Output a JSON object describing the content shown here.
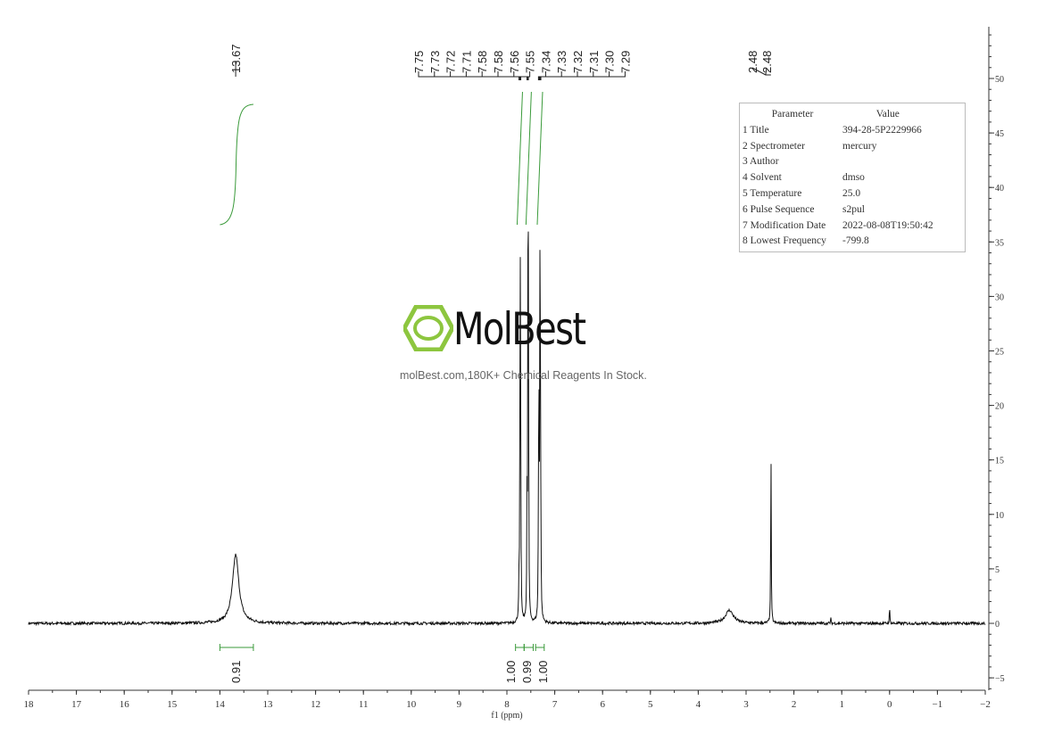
{
  "chart_data": {
    "type": "line",
    "xlabel": "f1 (ppm)",
    "xlim": [
      18,
      -2
    ],
    "ylim": [
      -7,
      55
    ],
    "x_ticks": [
      18,
      17,
      16,
      15,
      14,
      13,
      12,
      11,
      10,
      9,
      8,
      7,
      6,
      5,
      4,
      3,
      2,
      1,
      0,
      -1,
      -2
    ],
    "y_ticks": [
      -5,
      0,
      5,
      10,
      15,
      20,
      25,
      30,
      35,
      40,
      45,
      50
    ],
    "grid": false,
    "series": [
      {
        "peaks_ppm_height": [
          [
            13.67,
            6.3
          ],
          [
            7.75,
            3
          ],
          [
            7.73,
            10
          ],
          [
            7.72,
            28
          ],
          [
            7.71,
            10
          ],
          [
            7.58,
            10
          ],
          [
            7.56,
            29
          ],
          [
            7.55,
            28
          ],
          [
            7.34,
            10
          ],
          [
            7.33,
            17
          ],
          [
            7.31,
            27.5
          ],
          [
            7.3,
            17
          ],
          [
            7.29,
            5
          ],
          [
            3.35,
            1.2
          ],
          [
            2.48,
            17
          ],
          [
            1.23,
            0.5
          ],
          [
            0.0,
            1.6
          ]
        ]
      }
    ],
    "peak_labels": [
      "13.67",
      "7.75",
      "7.73",
      "7.72",
      "7.71",
      "7.58",
      "7.58",
      "7.56",
      "7.55",
      "7.34",
      "7.33",
      "7.32",
      "7.31",
      "7.30",
      "7.29",
      "2.48",
      "2.48"
    ],
    "integrals": [
      {
        "from": 14.0,
        "to": 13.3,
        "value": "0.91"
      },
      {
        "from": 7.82,
        "to": 7.64,
        "value": "1.00"
      },
      {
        "from": 7.64,
        "to": 7.45,
        "value": "0.99"
      },
      {
        "from": 7.4,
        "to": 7.22,
        "value": "1.00"
      }
    ],
    "colors": {
      "spectrum": "#111111",
      "integral": "#3a9a3a",
      "logo": "#8dc63f"
    }
  },
  "parameters": {
    "header": [
      "Parameter",
      "Value"
    ],
    "rows": [
      [
        "1 Title",
        "394-28-5P2229966"
      ],
      [
        "2 Spectrometer",
        "mercury"
      ],
      [
        "3 Author",
        ""
      ],
      [
        "4 Solvent",
        "dmso"
      ],
      [
        "5 Temperature",
        "25.0"
      ],
      [
        "6 Pulse Sequence",
        "s2pul"
      ],
      [
        "7 Modification Date",
        "2022-08-08T19:50:42"
      ],
      [
        "8 Lowest Frequency",
        "-799.8"
      ]
    ]
  },
  "watermark": {
    "name": "MolBest",
    "tagline": "molBest.com,180K+ Chemical Reagents In Stock."
  }
}
